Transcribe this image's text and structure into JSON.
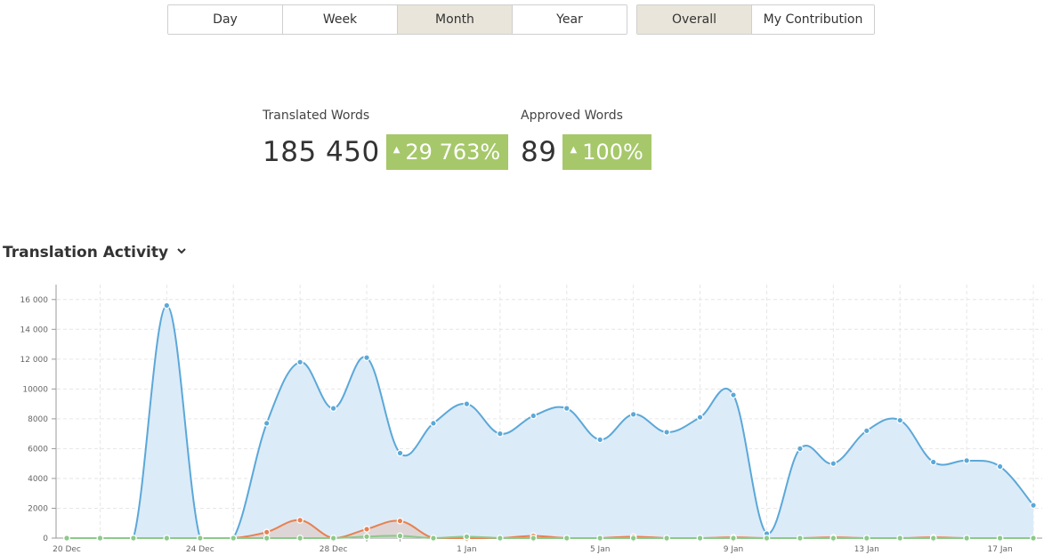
{
  "period_tabs": [
    {
      "label": "Day",
      "active": false
    },
    {
      "label": "Week",
      "active": false
    },
    {
      "label": "Month",
      "active": true
    },
    {
      "label": "Year",
      "active": false
    }
  ],
  "scope_tabs": [
    {
      "label": "Overall",
      "active": true
    },
    {
      "label": "My Contribution",
      "active": false
    }
  ],
  "stats": {
    "translated": {
      "label": "Translated Words",
      "value": "185 450",
      "change": "29 763%"
    },
    "approved": {
      "label": "Approved Words",
      "value": "89",
      "change": "100%"
    }
  },
  "section": {
    "title": "Translation Activity",
    "icon": "chevron-down-icon"
  },
  "colors": {
    "badge": "#a6c86a",
    "active_tab": "#e9e5da",
    "series_translated": "#5ba8d8",
    "series_translated_fill": "#dcebf8",
    "series_approved": "#e8804f",
    "series_other": "#8cc98a"
  },
  "chart_data": {
    "type": "area",
    "x": [
      "20 Dec",
      "21 Dec",
      "22 Dec",
      "23 Dec",
      "24 Dec",
      "25 Dec",
      "26 Dec",
      "27 Dec",
      "28 Dec",
      "29 Dec",
      "30 Dec",
      "31 Dec",
      "1 Jan",
      "2 Jan",
      "3 Jan",
      "4 Jan",
      "5 Jan",
      "6 Jan",
      "7 Jan",
      "8 Jan",
      "9 Jan",
      "10 Jan",
      "11 Jan",
      "12 Jan",
      "13 Jan",
      "14 Jan",
      "15 Jan",
      "16 Jan",
      "17 Jan",
      "18 Jan"
    ],
    "xticks": [
      "20 Dec",
      "24 Dec",
      "28 Dec",
      "1 Jan",
      "5 Jan",
      "9 Jan",
      "13 Jan",
      "17 Jan"
    ],
    "yticks": [
      0,
      2000,
      4000,
      6000,
      8000,
      10000,
      12000,
      14000,
      16000
    ],
    "ytick_labels": [
      "0",
      "2000",
      "4000",
      "6000",
      "8000",
      "10000",
      "12 000",
      "14 000",
      "16 000"
    ],
    "ylim": [
      0,
      17000
    ],
    "grid": true,
    "series": [
      {
        "values": [
          0,
          0,
          0,
          15600,
          0,
          0,
          7700,
          11800,
          8700,
          12100,
          5700,
          7700,
          9000,
          7000,
          8200,
          8700,
          6600,
          8300,
          7100,
          8100,
          9600,
          300,
          6000,
          5000,
          7200,
          7900,
          5100,
          5200,
          4800,
          2200
        ]
      },
      {
        "values": [
          0,
          0,
          0,
          0,
          0,
          0,
          400,
          1200,
          0,
          600,
          1150,
          0,
          0,
          0,
          150,
          0,
          0,
          100,
          0,
          0,
          50,
          0,
          0,
          50,
          0,
          0,
          50,
          0,
          0,
          0
        ]
      },
      {
        "values": [
          0,
          0,
          0,
          0,
          0,
          0,
          0,
          0,
          0,
          100,
          150,
          0,
          100,
          0,
          0,
          0,
          0,
          0,
          0,
          0,
          0,
          0,
          0,
          0,
          0,
          0,
          0,
          0,
          0,
          0
        ]
      }
    ]
  }
}
